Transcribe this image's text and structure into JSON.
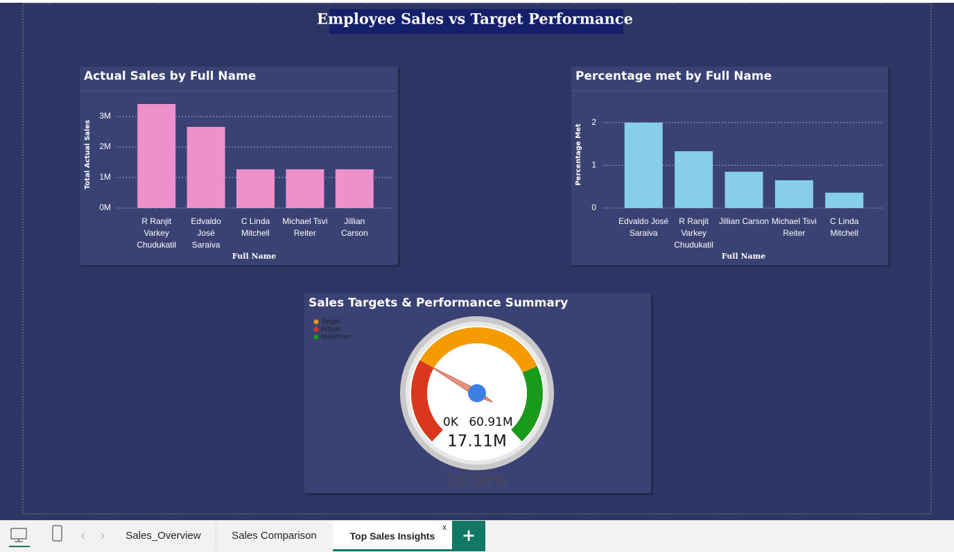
{
  "page": {
    "title": "Employee Sales vs Target Performance",
    "tabs": [
      "Sales_Overview",
      "Sales Comparison",
      "Top Sales Insights"
    ],
    "active_tab": 2,
    "close_tab": "x",
    "add_tab": "+"
  },
  "chart_data": [
    {
      "type": "bar",
      "title": "Actual Sales by Full Name",
      "x_label": "Full Name",
      "y_label": "Total Actual Sales",
      "categories": [
        "R Ranjit Varkey Chudukatil",
        "Edvaldo José Saraiva",
        "C Linda Mitchell",
        "Michael Tsvi Reiter",
        "Jillian Carson"
      ],
      "values": [
        3410000,
        2660000,
        1270000,
        1270000,
        1270000
      ],
      "color": "#ee90cb",
      "ylim": [
        0,
        3500000
      ],
      "yticks": [
        {
          "value": 0,
          "label": "0M"
        },
        {
          "value": 1000000,
          "label": "1M"
        },
        {
          "value": 2000000,
          "label": "2M"
        },
        {
          "value": 3000000,
          "label": "3M"
        }
      ],
      "grid": true
    },
    {
      "type": "bar",
      "title": "Percentage met by Full Name",
      "x_label": "Full Name",
      "y_label": "Percentage Met",
      "categories": [
        "Edvaldo José Saraiva",
        "R Ranjit Varkey Chudukatil",
        "Jillian Carson",
        "Michael Tsvi Reiter",
        "C Linda Mitchell"
      ],
      "values": [
        2.0,
        1.33,
        0.85,
        0.65,
        0.36
      ],
      "color": "#87ceeb",
      "ylim": [
        0,
        2.5
      ],
      "yticks": [
        0,
        1,
        2
      ],
      "grid": true
    },
    {
      "type": "gauge",
      "title": "Sales Targets & Performance Summary",
      "min": {
        "value": 0,
        "label": "0K"
      },
      "max": {
        "value": 60910000,
        "label": "60.91M"
      },
      "value": 17110000,
      "value_label": "17.11M",
      "percent": 28.08,
      "percent_label": "28.08%",
      "series": [
        {
          "name": "Target",
          "color": "#f59b00",
          "value": 45100000
        },
        {
          "name": "Actual",
          "color": "#d9381e",
          "value": 17110000
        },
        {
          "name": "Maximum",
          "color": "#1a9a1a",
          "value": 60910000
        }
      ]
    }
  ]
}
